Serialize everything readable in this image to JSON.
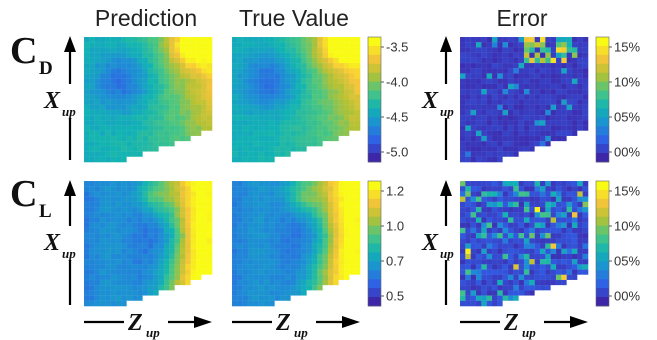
{
  "chart_data": [
    {
      "type": "heatmap",
      "row": "C_D",
      "panels": [
        {
          "title": "Prediction",
          "field": "cd_prediction"
        },
        {
          "title": "True Value",
          "field": "cd_true"
        },
        {
          "title": "Error",
          "field": "cd_error"
        }
      ],
      "colorbar_value": {
        "ticks": [
          "-3.5",
          "-4.0",
          "-4.5",
          "-5.0"
        ],
        "range": [
          -5.3,
          -3.2
        ]
      },
      "colorbar_error": {
        "ticks": [
          "15%",
          "10%",
          "05%",
          "00%"
        ],
        "range": [
          0,
          16
        ]
      },
      "grid": [
        24,
        24
      ],
      "masked_region": "lower-right corner (white cells)",
      "xlabel": "Z_up",
      "ylabel": "X_up"
    },
    {
      "type": "heatmap",
      "row": "C_L",
      "panels": [
        {
          "title": "",
          "field": "cl_prediction"
        },
        {
          "title": "",
          "field": "cl_true"
        },
        {
          "title": "",
          "field": "cl_error"
        }
      ],
      "colorbar_value": {
        "ticks": [
          "1.2",
          "1.0",
          "0.7",
          "0.5"
        ],
        "range": [
          0.45,
          1.25
        ]
      },
      "colorbar_error": {
        "ticks": [
          "15%",
          "10%",
          "05%",
          "00%"
        ],
        "range": [
          0,
          16
        ]
      },
      "grid": [
        24,
        24
      ],
      "masked_region": "lower-right corner (white cells)",
      "xlabel": "Z_up",
      "ylabel": "X_up"
    }
  ],
  "labels": {
    "title_prediction": "Prediction",
    "title_true": "True Value",
    "title_error": "Error",
    "row1_main": "C",
    "row1_sub": "D",
    "row2_main": "C",
    "row2_sub": "L",
    "ylabel_main": "X",
    "ylabel_sub": "up",
    "xlabel_main": "Z",
    "xlabel_sub": "up"
  },
  "colormap": [
    "#3e26a8",
    "#2f5fe6",
    "#1d8fd4",
    "#12b3b3",
    "#4cc67f",
    "#b3c134",
    "#f6c53a",
    "#f9fb15"
  ]
}
